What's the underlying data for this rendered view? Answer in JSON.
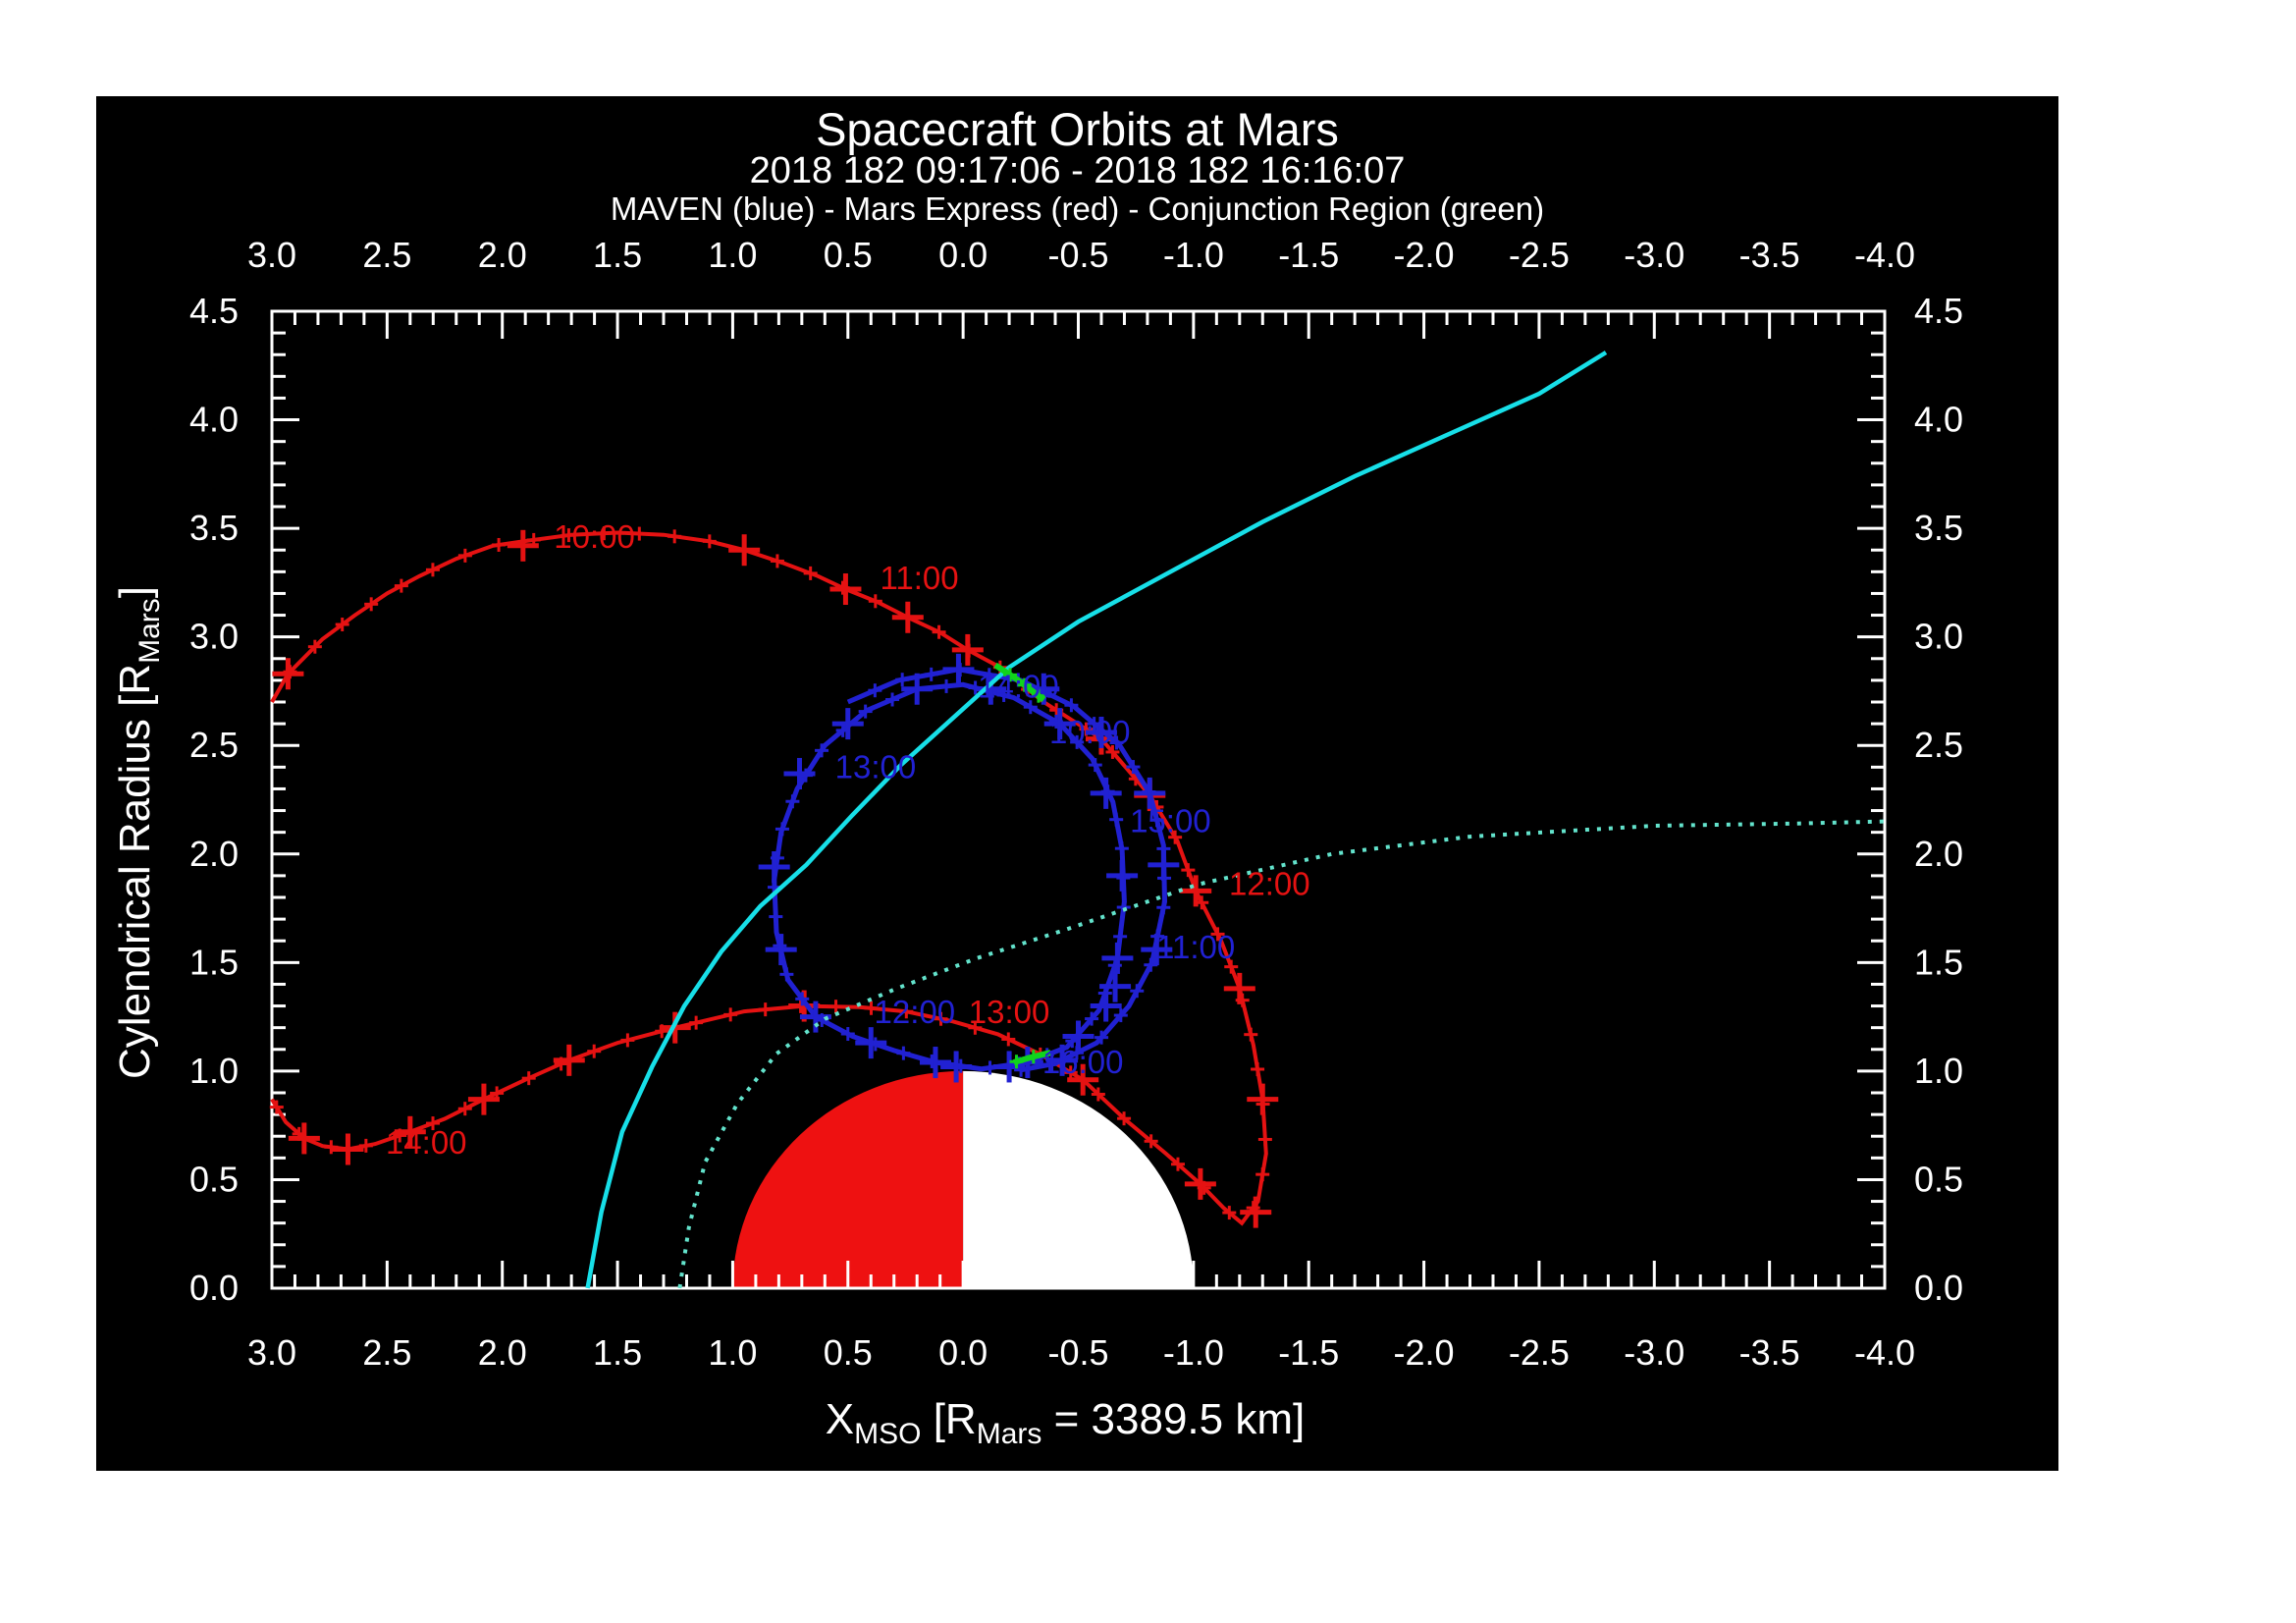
{
  "header": {
    "title": "Spacecraft Orbits at Mars",
    "subtitle": "2018 182 09:17:06 - 2018 182 16:16:07",
    "legend_caption": "MAVEN (blue) - Mars Express (red) - Conjunction Region (green)"
  },
  "colors": {
    "background": "#000000",
    "page": "#ffffff",
    "axis": "#ffffff",
    "maven_blue": "#2121d2",
    "mex_red": "#e51212",
    "conjunction_green": "#10d41c",
    "bow_shock_cyan": "#17dfe8",
    "boundary_dotted_cyan": "#63e3cc",
    "mars_dayside": "#ee1111",
    "mars_nightside": "#ffffff"
  },
  "chart_data": {
    "type": "line",
    "title": "Spacecraft Orbits at Mars",
    "subtitle": "2018 182 09:17:06 - 2018 182 16:16:07",
    "legend_caption": "MAVEN (blue) - Mars Express (red) - Conjunction Region (green)",
    "grid": false,
    "x_axis": {
      "label_parts": [
        "X",
        "MSO",
        " [R",
        "Mars",
        " = 3389.5 km]"
      ],
      "range": [
        3.0,
        -4.0
      ],
      "major_tick_step": 0.5,
      "minor_tick_step": 0.1,
      "tick_labels": [
        "3.0",
        "2.5",
        "2.0",
        "1.5",
        "1.0",
        "0.5",
        "0.0",
        "-0.5",
        "-1.0",
        "-1.5",
        "-2.0",
        "-2.5",
        "-3.0",
        "-3.5",
        "-4.0"
      ],
      "mirrored_on_top": true
    },
    "y_axis": {
      "label_parts": [
        "Cylendrical Radius [R",
        "Mars",
        "]"
      ],
      "range": [
        0.0,
        4.5
      ],
      "major_tick_step": 0.5,
      "minor_tick_step": 0.1,
      "tick_labels": [
        "0.0",
        "0.5",
        "1.0",
        "1.5",
        "2.0",
        "2.5",
        "3.0",
        "3.5",
        "4.0",
        "4.5"
      ],
      "mirrored_on_right": true
    },
    "mars": {
      "radius_rmars": 1.0,
      "center": [
        0.0,
        0.0
      ],
      "dayside": "x > 0 (red)",
      "nightside": "x < 0 (white)"
    },
    "series": [
      {
        "name": "mars-express-orbit",
        "label": "Mars Express (red)",
        "color": "#e51212",
        "points": [
          [
            3.0,
            2.7
          ],
          [
            2.93,
            2.83
          ],
          [
            2.78,
            2.99
          ],
          [
            2.64,
            3.1
          ],
          [
            2.5,
            3.2
          ],
          [
            2.36,
            3.28
          ],
          [
            2.2,
            3.36
          ],
          [
            2.04,
            3.42
          ],
          [
            1.91,
            3.44
          ],
          [
            1.7,
            3.47
          ],
          [
            1.5,
            3.48
          ],
          [
            1.3,
            3.47
          ],
          [
            1.1,
            3.44
          ],
          [
            0.95,
            3.4
          ],
          [
            0.78,
            3.34
          ],
          [
            0.63,
            3.28
          ],
          [
            0.51,
            3.22
          ],
          [
            0.37,
            3.16
          ],
          [
            0.24,
            3.09
          ],
          [
            0.1,
            3.02
          ],
          [
            -0.02,
            2.94
          ],
          [
            -0.16,
            2.86
          ],
          [
            -0.35,
            2.7
          ],
          [
            -0.6,
            2.53
          ],
          [
            -0.81,
            2.27
          ],
          [
            -0.93,
            2.06
          ],
          [
            -1.01,
            1.83
          ],
          [
            -1.12,
            1.6
          ],
          [
            -1.2,
            1.38
          ],
          [
            -1.26,
            1.12
          ],
          [
            -1.3,
            0.87
          ],
          [
            -1.315,
            0.62
          ],
          [
            -1.28,
            0.4
          ],
          [
            -1.21,
            0.3
          ],
          [
            -1.13,
            0.37
          ],
          [
            -1.03,
            0.48
          ],
          [
            -0.88,
            0.62
          ],
          [
            -0.7,
            0.78
          ],
          [
            -0.52,
            0.96
          ],
          [
            -0.33,
            1.08
          ],
          [
            -0.15,
            1.17
          ],
          [
            0.05,
            1.23
          ],
          [
            0.25,
            1.275
          ],
          [
            0.45,
            1.295
          ],
          [
            0.69,
            1.3
          ],
          [
            0.95,
            1.275
          ],
          [
            1.25,
            1.2
          ],
          [
            1.5,
            1.13
          ],
          [
            1.71,
            1.05
          ],
          [
            1.9,
            0.96
          ],
          [
            2.08,
            0.87
          ],
          [
            2.25,
            0.78
          ],
          [
            2.4,
            0.72
          ],
          [
            2.55,
            0.665
          ],
          [
            2.67,
            0.64
          ],
          [
            2.78,
            0.655
          ],
          [
            2.86,
            0.69
          ],
          [
            2.94,
            0.765
          ],
          [
            3.0,
            0.87
          ]
        ],
        "big_markers": [
          [
            2.93,
            2.83
          ],
          [
            1.91,
            3.42
          ],
          [
            0.95,
            3.4
          ],
          [
            0.51,
            3.22
          ],
          [
            0.24,
            3.09
          ],
          [
            -0.02,
            2.94
          ],
          [
            -0.6,
            2.53
          ],
          [
            -0.81,
            2.27
          ],
          [
            -1.01,
            1.83
          ],
          [
            -1.2,
            1.38
          ],
          [
            -1.3,
            0.87
          ],
          [
            -1.27,
            0.35
          ],
          [
            -1.03,
            0.48
          ],
          [
            -0.52,
            0.96
          ],
          [
            0.69,
            1.3
          ],
          [
            1.25,
            1.2
          ],
          [
            1.71,
            1.05
          ],
          [
            2.08,
            0.87
          ],
          [
            2.4,
            0.72
          ],
          [
            2.67,
            0.64
          ],
          [
            2.86,
            0.69
          ]
        ],
        "time_labels": [
          {
            "t": "10:00",
            "x": 1.6,
            "y": 3.46
          },
          {
            "t": "11:00",
            "x": 0.19,
            "y": 3.27
          },
          {
            "t": "12:00",
            "x": -1.33,
            "y": 1.86
          },
          {
            "t": "13:00",
            "x": -0.2,
            "y": 1.27
          },
          {
            "t": "14:00",
            "x": 2.33,
            "y": 0.67
          }
        ]
      },
      {
        "name": "maven-orbit-pass-1",
        "label": "MAVEN (blue)",
        "color": "#2121d2",
        "points": [
          [
            0.2,
            2.76
          ],
          [
            0.0,
            2.78
          ],
          [
            -0.22,
            2.72
          ],
          [
            -0.42,
            2.6
          ],
          [
            -0.56,
            2.44
          ],
          [
            -0.65,
            2.24
          ],
          [
            -0.69,
            2.02
          ],
          [
            -0.7,
            1.78
          ],
          [
            -0.67,
            1.52
          ],
          [
            -0.59,
            1.28
          ],
          [
            -0.45,
            1.11
          ],
          [
            -0.28,
            1.04
          ],
          [
            -0.08,
            1.01
          ],
          [
            0.12,
            1.04
          ],
          [
            0.3,
            1.095
          ],
          [
            0.48,
            1.16
          ],
          [
            0.64,
            1.25
          ],
          [
            0.76,
            1.42
          ],
          [
            0.81,
            1.64
          ],
          [
            0.82,
            1.88
          ],
          [
            0.79,
            2.1
          ],
          [
            0.72,
            2.3
          ],
          [
            0.6,
            2.5
          ],
          [
            0.42,
            2.66
          ],
          [
            0.2,
            2.76
          ]
        ],
        "big_markers": [
          [
            0.2,
            2.76
          ],
          [
            -0.12,
            2.76
          ],
          [
            -0.42,
            2.6
          ],
          [
            -0.62,
            2.28
          ],
          [
            -0.69,
            1.9
          ],
          [
            -0.67,
            1.52
          ],
          [
            -0.5,
            1.16
          ],
          [
            -0.28,
            1.04
          ],
          [
            0.12,
            1.04
          ],
          [
            0.4,
            1.13
          ],
          [
            0.64,
            1.25
          ],
          [
            0.79,
            1.56
          ],
          [
            0.82,
            1.94
          ],
          [
            0.71,
            2.37
          ],
          [
            0.5,
            2.6
          ]
        ],
        "time_labels": [
          {
            "t": "10:00",
            "x": -0.55,
            "y": 2.56
          },
          {
            "t": "11:00",
            "x": -1.01,
            "y": 1.57
          },
          {
            "t": "12:00",
            "x": 0.21,
            "y": 1.27
          },
          {
            "t": "13:00",
            "x": 0.38,
            "y": 2.4
          }
        ]
      },
      {
        "name": "maven-orbit-pass-2",
        "label": "MAVEN (blue)",
        "color": "#2121d2",
        "points": [
          [
            0.5,
            2.7
          ],
          [
            0.28,
            2.8
          ],
          [
            0.02,
            2.85
          ],
          [
            -0.25,
            2.8
          ],
          [
            -0.48,
            2.68
          ],
          [
            -0.68,
            2.5
          ],
          [
            -0.81,
            2.28
          ],
          [
            -0.87,
            2.04
          ],
          [
            -0.875,
            1.78
          ],
          [
            -0.82,
            1.5
          ],
          [
            -0.72,
            1.3
          ],
          [
            -0.58,
            1.13
          ],
          [
            -0.4,
            1.035
          ],
          [
            -0.25,
            1.005
          ]
        ],
        "big_markers": [
          [
            0.02,
            2.85
          ],
          [
            -0.35,
            2.76
          ],
          [
            -0.6,
            2.56
          ],
          [
            -0.81,
            2.28
          ],
          [
            -0.87,
            1.95
          ],
          [
            -0.84,
            1.56
          ],
          [
            -0.66,
            1.39
          ],
          [
            -0.62,
            1.3
          ],
          [
            -0.43,
            1.05
          ],
          [
            -0.2,
            1.02
          ],
          [
            0.03,
            1.02
          ]
        ],
        "time_labels": [
          {
            "t": "14:00",
            "x": -0.24,
            "y": 2.77
          },
          {
            "t": "15:00",
            "x": -0.9,
            "y": 2.15
          },
          {
            "t": "16:00",
            "x": -0.52,
            "y": 1.04
          }
        ]
      },
      {
        "name": "bow-shock-boundary",
        "label": "bow shock model curve",
        "color": "#17dfe8",
        "style": "solid",
        "points": [
          [
            1.63,
            0.0
          ],
          [
            1.57,
            0.35
          ],
          [
            1.48,
            0.72
          ],
          [
            1.35,
            1.02
          ],
          [
            1.21,
            1.3
          ],
          [
            1.05,
            1.55
          ],
          [
            0.88,
            1.76
          ],
          [
            0.68,
            1.95
          ],
          [
            0.48,
            2.18
          ],
          [
            0.27,
            2.41
          ],
          [
            0.03,
            2.64
          ],
          [
            -0.2,
            2.86
          ],
          [
            -0.5,
            3.07
          ],
          [
            -0.9,
            3.3
          ],
          [
            -1.3,
            3.53
          ],
          [
            -1.7,
            3.74
          ],
          [
            -2.1,
            3.93
          ],
          [
            -2.5,
            4.12
          ],
          [
            -2.79,
            4.31
          ]
        ]
      },
      {
        "name": "pileup-boundary",
        "label": "magnetic pileup boundary model curve",
        "color": "#63e3cc",
        "style": "dotted",
        "points": [
          [
            1.23,
            0.0
          ],
          [
            1.19,
            0.28
          ],
          [
            1.12,
            0.58
          ],
          [
            0.98,
            0.85
          ],
          [
            0.81,
            1.08
          ],
          [
            0.6,
            1.24
          ],
          [
            0.29,
            1.38
          ],
          [
            -0.06,
            1.52
          ],
          [
            -0.44,
            1.65
          ],
          [
            -1.02,
            1.86
          ],
          [
            -1.6,
            2.0
          ],
          [
            -2.2,
            2.08
          ],
          [
            -3.0,
            2.13
          ],
          [
            -3.6,
            2.14
          ],
          [
            -4.0,
            2.15
          ]
        ]
      },
      {
        "name": "conjunction-region-on-mex",
        "label": "Conjunction Region (green)",
        "color": "#10d41c",
        "points": [
          [
            -0.14,
            2.87
          ],
          [
            -0.24,
            2.8
          ],
          [
            -0.35,
            2.71
          ]
        ]
      },
      {
        "name": "conjunction-region-on-maven",
        "label": "Conjunction Region (green)",
        "color": "#10d41c",
        "points": [
          [
            -0.38,
            1.085
          ],
          [
            -0.3,
            1.065
          ],
          [
            -0.22,
            1.04
          ]
        ]
      }
    ]
  }
}
